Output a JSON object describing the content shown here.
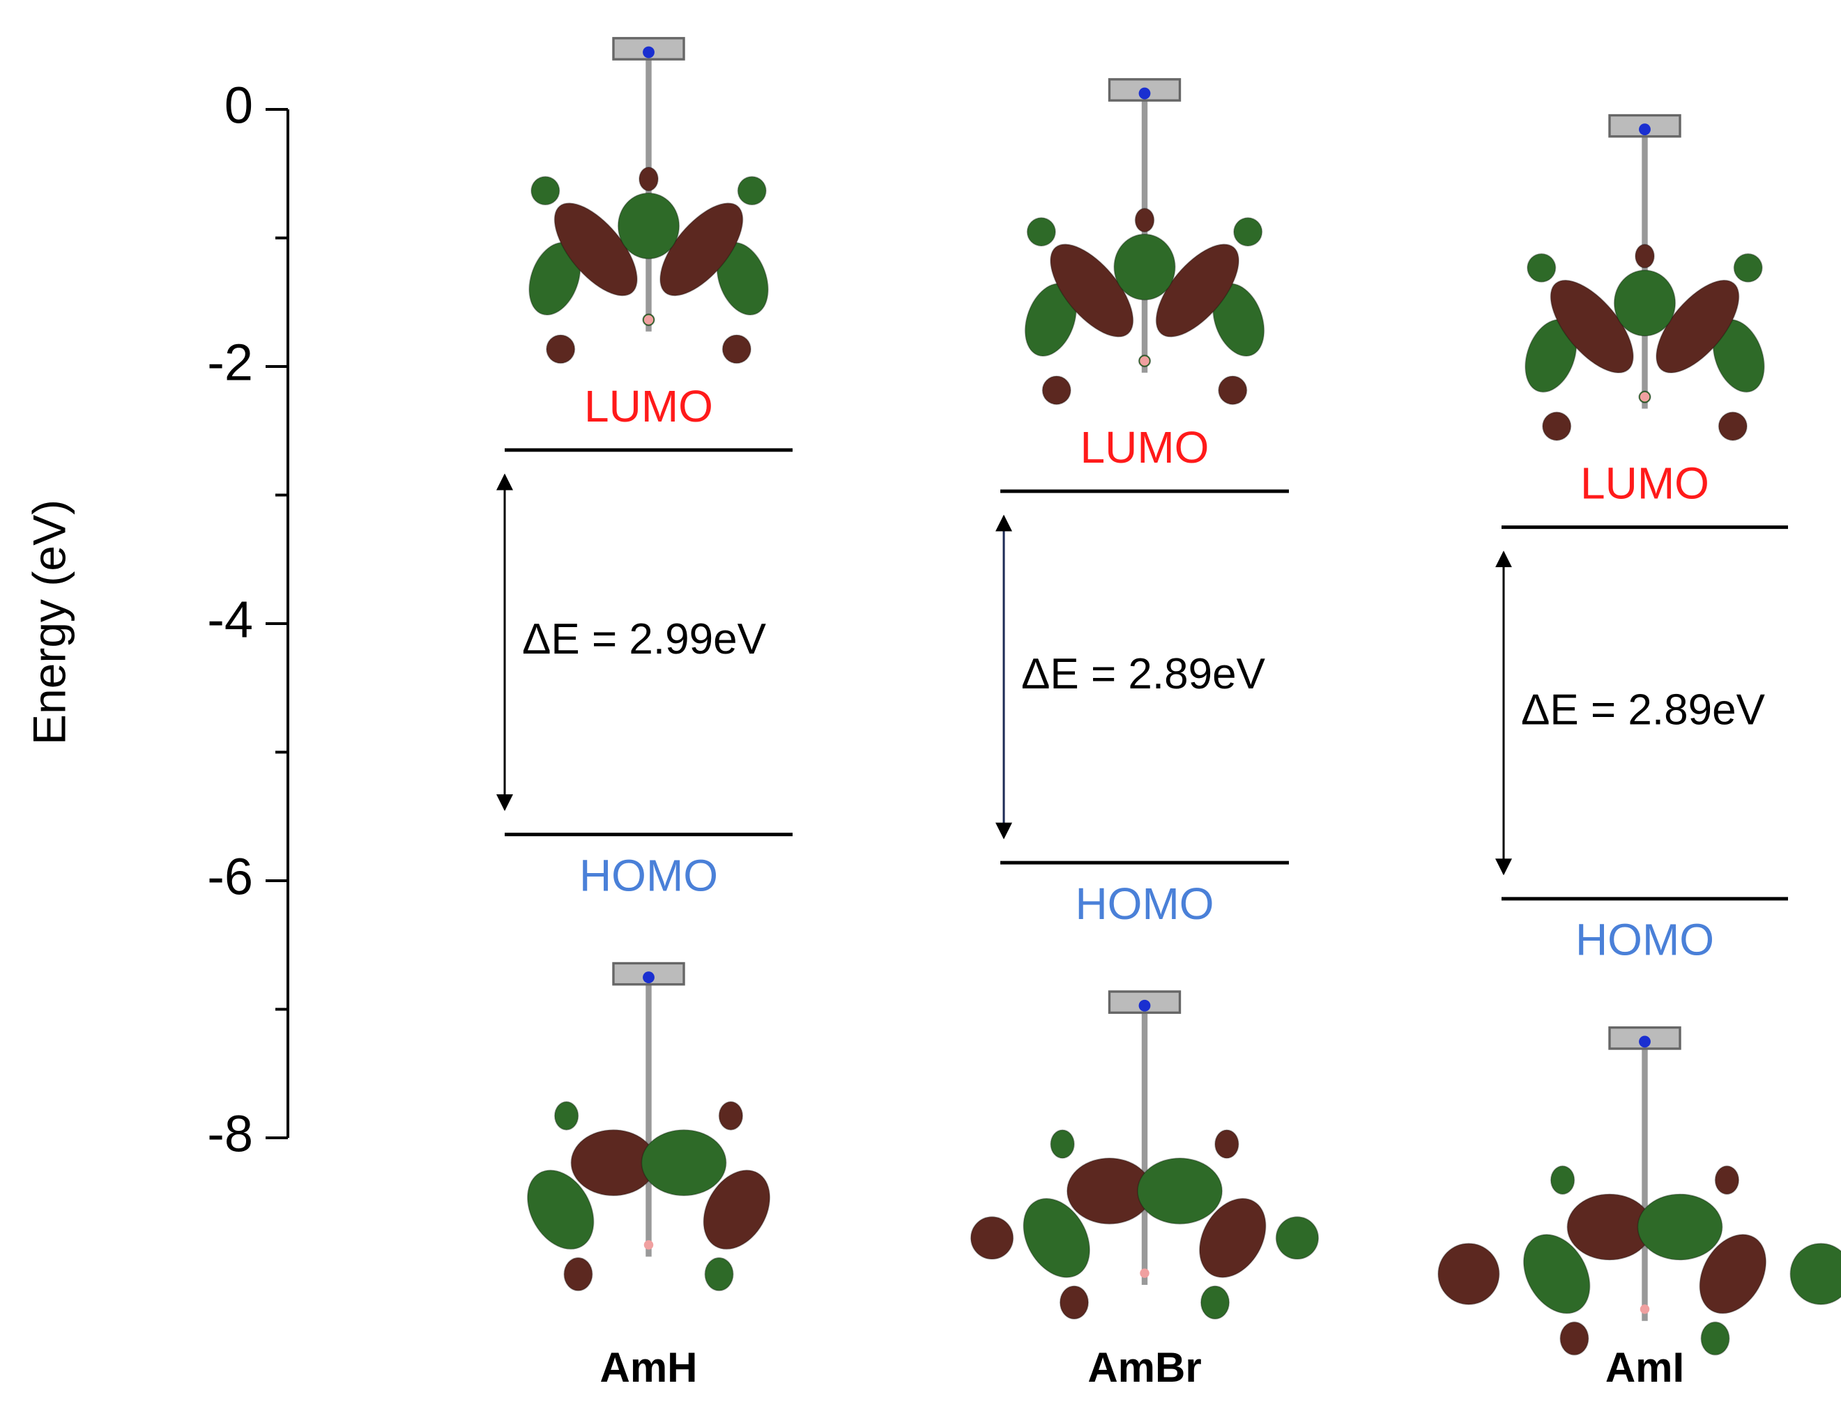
{
  "chart_data": {
    "type": "energy-level",
    "y_label": "Energy (eV)",
    "categories": [
      "AmH",
      "AmBr",
      "AmI"
    ],
    "series": [
      {
        "name": "LUMO",
        "color": "#ff1a1a",
        "values": [
          -2.65,
          -2.97,
          -3.25
        ]
      },
      {
        "name": "HOMO",
        "color": "#4a80d8",
        "values": [
          -5.64,
          -5.86,
          -6.14
        ]
      }
    ],
    "gap_labels": [
      "ΔE = 2.99eV",
      "ΔE = 2.89eV",
      "ΔE = 2.89eV"
    ],
    "ylim": [
      -8,
      0
    ],
    "yticks": [
      0,
      -2,
      -4,
      -6,
      -8
    ],
    "minor_yticks": [
      -1,
      -3,
      -5,
      -7
    ],
    "level_color": "#000000"
  }
}
